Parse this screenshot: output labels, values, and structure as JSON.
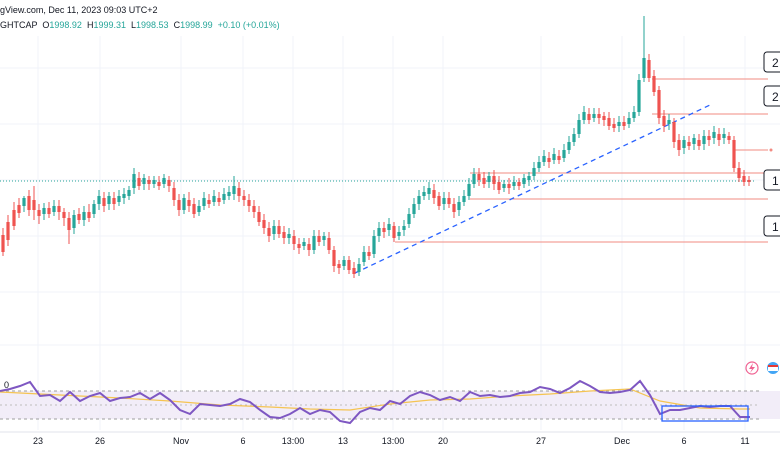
{
  "header": {
    "line1": "gView.com, Dec 11, 2023 09:03 UTC+2",
    "symbol": "GHTCAP",
    "o_label": "O",
    "o_value": "1998.92",
    "h_label": "H",
    "h_value": "1999.31",
    "l_label": "L",
    "l_value": "1998.53",
    "c_label": "C",
    "c_value": "1998.99",
    "change": "+0.10 (+0.01%)"
  },
  "price_tags": [
    "2",
    "2",
    "1",
    "1"
  ],
  "x_axis": [
    "23",
    "26",
    "Nov",
    "6",
    "13:00",
    "13",
    "13:00",
    "20",
    "27",
    "Dec",
    "6",
    "11"
  ],
  "rsi_label": "0",
  "colors": {
    "up": "#26a69a",
    "down": "#ef5350",
    "trend": "#2962ff",
    "rsi": "#7e57c2",
    "rsi_ma": "#f5c451",
    "level": "#f28b82"
  }
}
